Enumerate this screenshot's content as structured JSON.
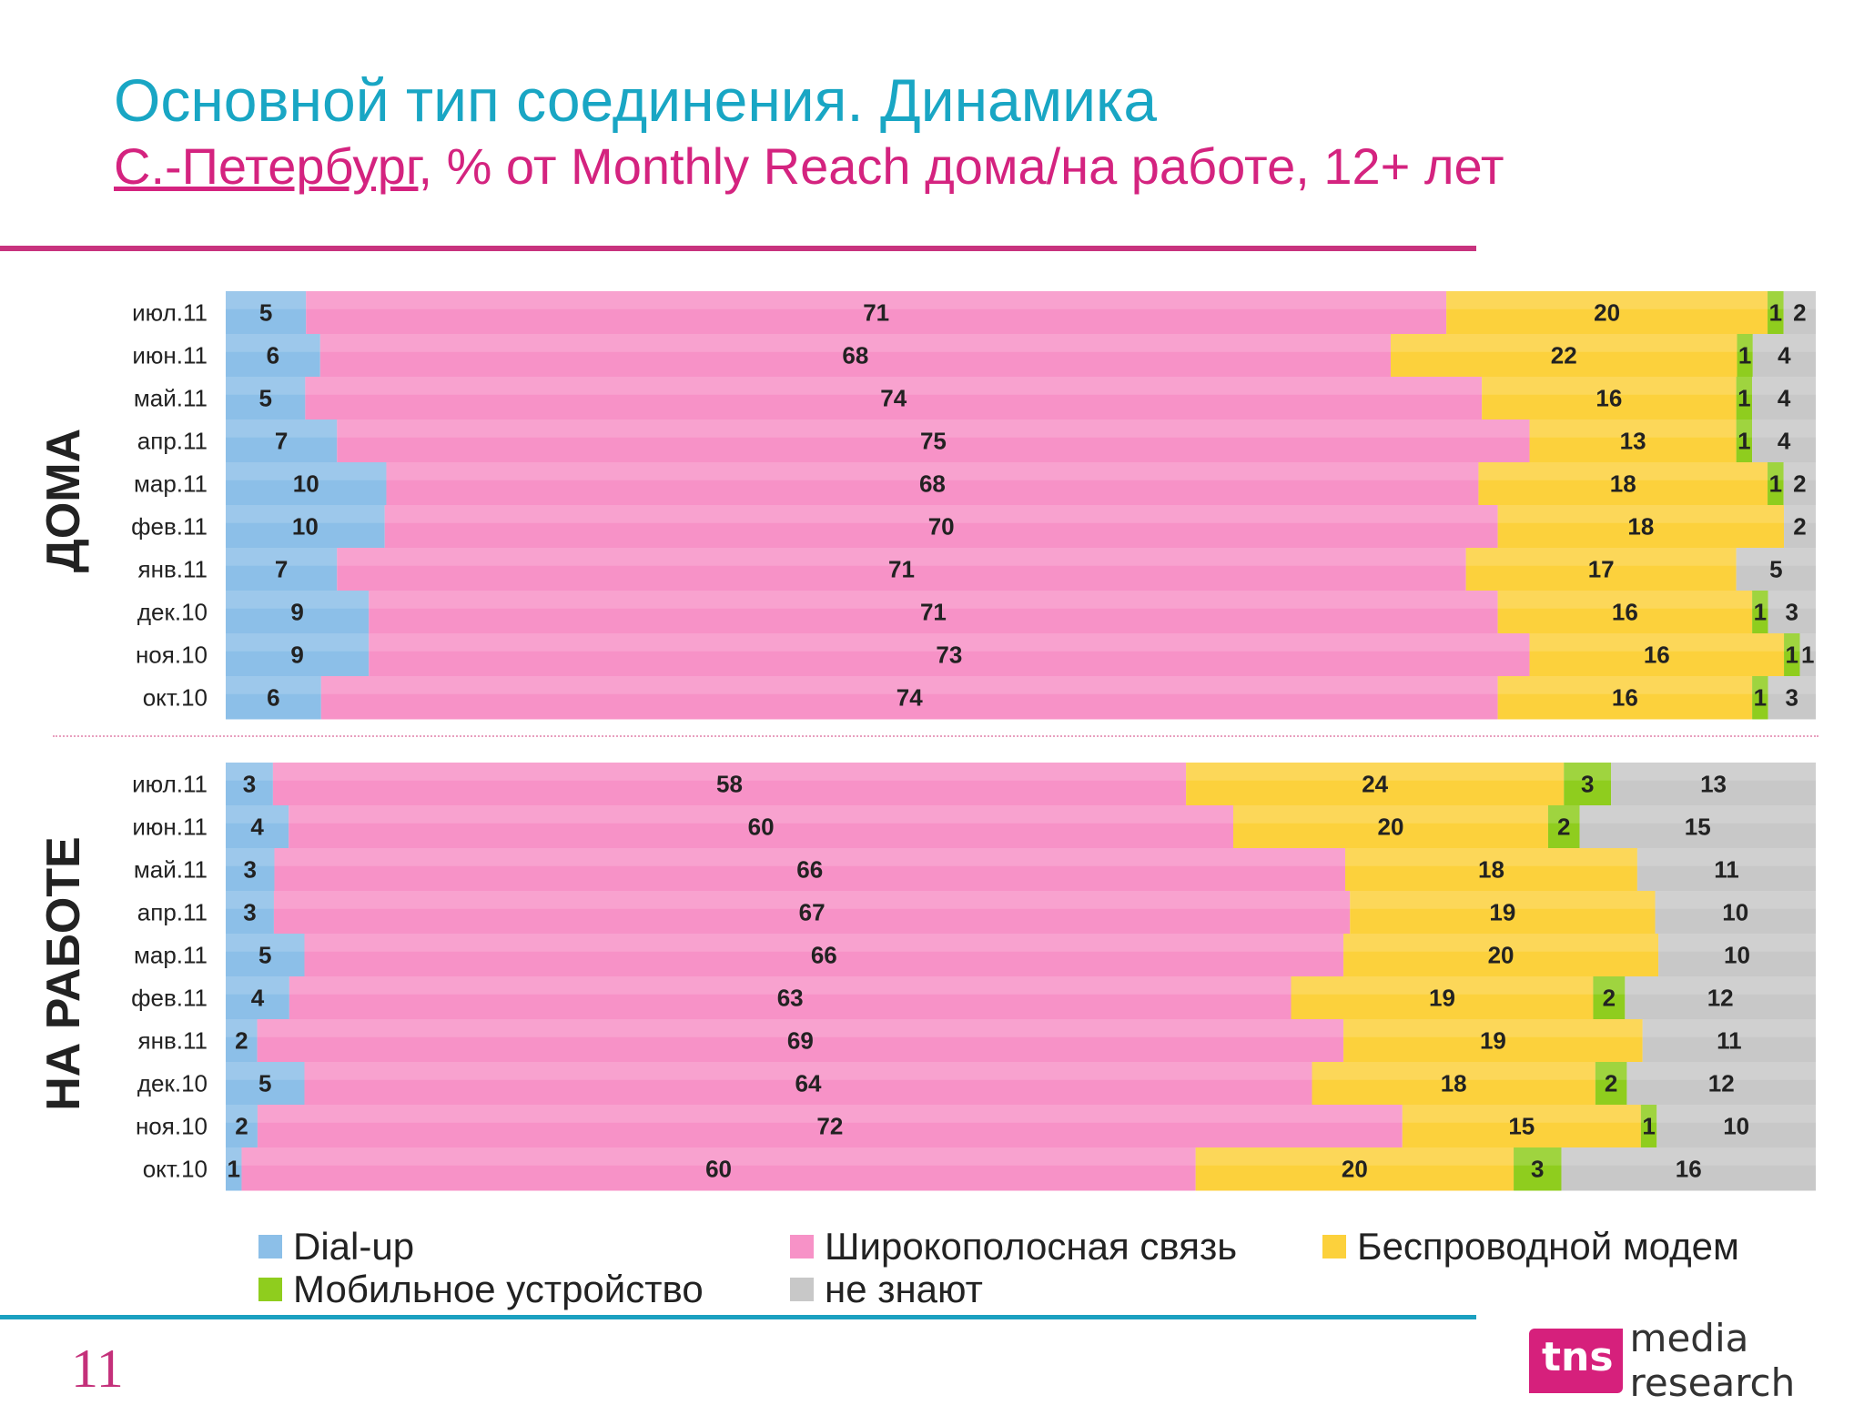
{
  "title": "Основной тип соединения. Динамика",
  "subtitle_city": "С.-Петербург",
  "subtitle_rest": ", % от Monthly Reach дома/на работе, 12+ лет",
  "page_number": "11",
  "logo": {
    "brand": "tns",
    "text": "media research"
  },
  "colors": {
    "dialup": "#8cbfe8",
    "broadband": "#f792c7",
    "wireless": "#fcd13c",
    "mobile": "#8fcd1e",
    "unknown": "#c8c8c8"
  },
  "chart_data": [
    {
      "type": "bar",
      "orientation": "horizontal-stacked-100",
      "section_label": "ДОМА",
      "categories": [
        "июл.11",
        "июн.11",
        "май.11",
        "апр.11",
        "мар.11",
        "фев.11",
        "янв.11",
        "дек.10",
        "ноя.10",
        "окт.10"
      ],
      "series": [
        {
          "name": "Dial-up",
          "values": [
            5,
            6,
            5,
            7,
            10,
            10,
            7,
            9,
            9,
            6
          ]
        },
        {
          "name": "Широкополосная связь",
          "values": [
            71,
            68,
            74,
            75,
            68,
            70,
            71,
            71,
            73,
            74
          ]
        },
        {
          "name": "Беспроводной модем",
          "values": [
            20,
            22,
            16,
            13,
            18,
            18,
            17,
            16,
            16,
            16
          ]
        },
        {
          "name": "Мобильное устройство",
          "values": [
            1,
            1,
            1,
            1,
            1,
            null,
            null,
            1,
            1,
            1
          ]
        },
        {
          "name": "не знают",
          "values": [
            2,
            4,
            4,
            4,
            2,
            2,
            5,
            3,
            1,
            3
          ]
        }
      ],
      "legend_position": "bottom"
    },
    {
      "type": "bar",
      "orientation": "horizontal-stacked-100",
      "section_label": "НА РАБОТЕ",
      "categories": [
        "июл.11",
        "июн.11",
        "май.11",
        "апр.11",
        "мар.11",
        "фев.11",
        "янв.11",
        "дек.10",
        "ноя.10",
        "окт.10"
      ],
      "series": [
        {
          "name": "Dial-up",
          "values": [
            3,
            4,
            3,
            3,
            5,
            4,
            2,
            5,
            2,
            1
          ]
        },
        {
          "name": "Широкополосная связь",
          "values": [
            58,
            60,
            66,
            67,
            66,
            63,
            69,
            64,
            72,
            60
          ]
        },
        {
          "name": "Беспроводной модем",
          "values": [
            24,
            20,
            18,
            19,
            20,
            19,
            19,
            18,
            15,
            20
          ]
        },
        {
          "name": "Мобильное устройство",
          "values": [
            3,
            2,
            null,
            null,
            null,
            2,
            null,
            2,
            1,
            3
          ]
        },
        {
          "name": "не знают",
          "values": [
            13,
            15,
            11,
            10,
            10,
            12,
            11,
            12,
            10,
            16
          ]
        }
      ],
      "legend_position": "bottom"
    }
  ],
  "legend": {
    "items": [
      {
        "label": "Dial-up",
        "color": "#8cbfe8"
      },
      {
        "label": "Широкополосная связь",
        "color": "#f792c7"
      },
      {
        "label": "Беспроводной модем",
        "color": "#fcd13c"
      },
      {
        "label": "Мобильное устройство",
        "color": "#8fcd1e"
      },
      {
        "label": "не знают",
        "color": "#c8c8c8"
      }
    ]
  }
}
